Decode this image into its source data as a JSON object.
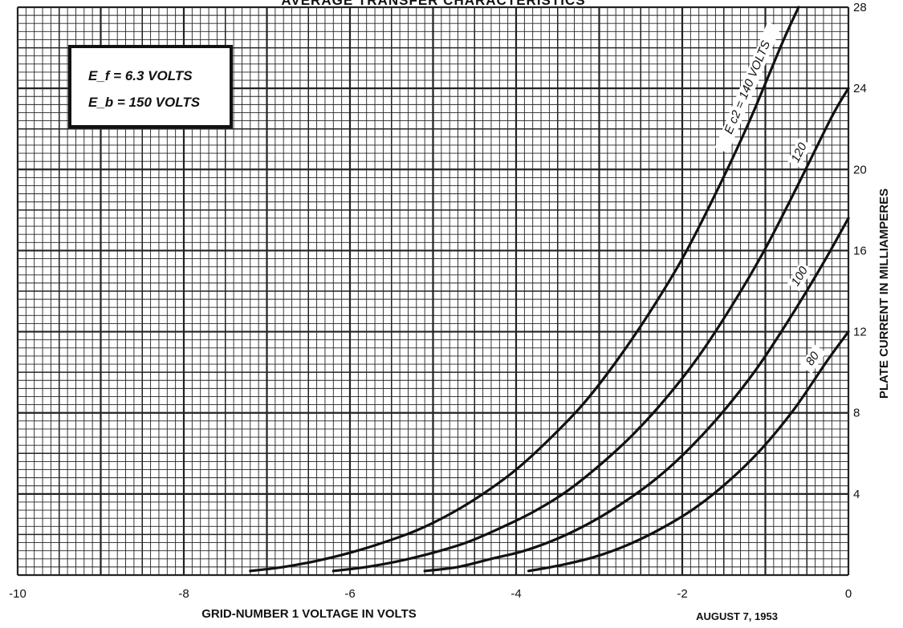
{
  "chart_data": {
    "type": "line",
    "title": "AVERAGE TRANSFER CHARACTERISTICS",
    "xlabel": "GRID-NUMBER 1 VOLTAGE IN VOLTS",
    "ylabel": "PLATE CURRENT IN MILLIAMPERES",
    "xlim": [
      -10,
      0
    ],
    "ylim": [
      0,
      28
    ],
    "x_ticks": [
      -10,
      -8,
      -6,
      -4,
      -2,
      0
    ],
    "x_tick_labels": [
      "-10",
      "-8",
      "-6",
      "-4",
      "-2",
      "0"
    ],
    "y_ticks": [
      4,
      8,
      12,
      16,
      20,
      24,
      28
    ],
    "y_tick_labels": [
      "4",
      "8",
      "12",
      "16",
      "20",
      "24",
      "28"
    ],
    "grid": true,
    "parameters": [
      "E_f = 6.3 VOLTS",
      "E_b = 150 VOLTS"
    ],
    "date": "AUGUST 7, 1953",
    "series": [
      {
        "name": "E_c2 = 140 VOLTS",
        "label_text": "E c2 = 140 VOLTS",
        "x": [
          -7.2,
          -6.8,
          -6.4,
          -6.0,
          -5.6,
          -5.2,
          -4.8,
          -4.4,
          -4.0,
          -3.6,
          -3.2,
          -2.8,
          -2.4,
          -2.0,
          -1.6,
          -1.2,
          -0.8,
          -0.6
        ],
        "y": [
          0.2,
          0.4,
          0.7,
          1.1,
          1.6,
          2.2,
          3.0,
          4.0,
          5.2,
          6.7,
          8.4,
          10.5,
          12.9,
          15.6,
          18.8,
          22.3,
          26.2,
          28.0
        ]
      },
      {
        "name": "120",
        "label_text": "120",
        "x": [
          -6.2,
          -5.8,
          -5.4,
          -5.0,
          -4.6,
          -4.2,
          -3.8,
          -3.4,
          -3.0,
          -2.6,
          -2.2,
          -1.8,
          -1.4,
          -1.0,
          -0.6,
          -0.2,
          0.0
        ],
        "y": [
          0.2,
          0.4,
          0.7,
          1.1,
          1.6,
          2.3,
          3.1,
          4.1,
          5.4,
          6.9,
          8.7,
          10.8,
          13.3,
          16.1,
          19.3,
          22.6,
          24.0
        ]
      },
      {
        "name": "100",
        "label_text": "100",
        "x": [
          -5.1,
          -4.7,
          -4.3,
          -3.9,
          -3.5,
          -3.1,
          -2.7,
          -2.3,
          -1.9,
          -1.5,
          -1.1,
          -0.7,
          -0.3,
          0.0
        ],
        "y": [
          0.2,
          0.4,
          0.8,
          1.2,
          1.8,
          2.6,
          3.6,
          4.8,
          6.3,
          8.1,
          10.2,
          12.7,
          15.4,
          17.6
        ]
      },
      {
        "name": "80",
        "label_text": "80",
        "x": [
          -3.85,
          -3.45,
          -3.05,
          -2.65,
          -2.25,
          -1.85,
          -1.45,
          -1.05,
          -0.65,
          -0.25,
          0.0
        ],
        "y": [
          0.2,
          0.5,
          0.9,
          1.5,
          2.3,
          3.3,
          4.6,
          6.2,
          8.2,
          10.6,
          12.0
        ]
      }
    ]
  }
}
